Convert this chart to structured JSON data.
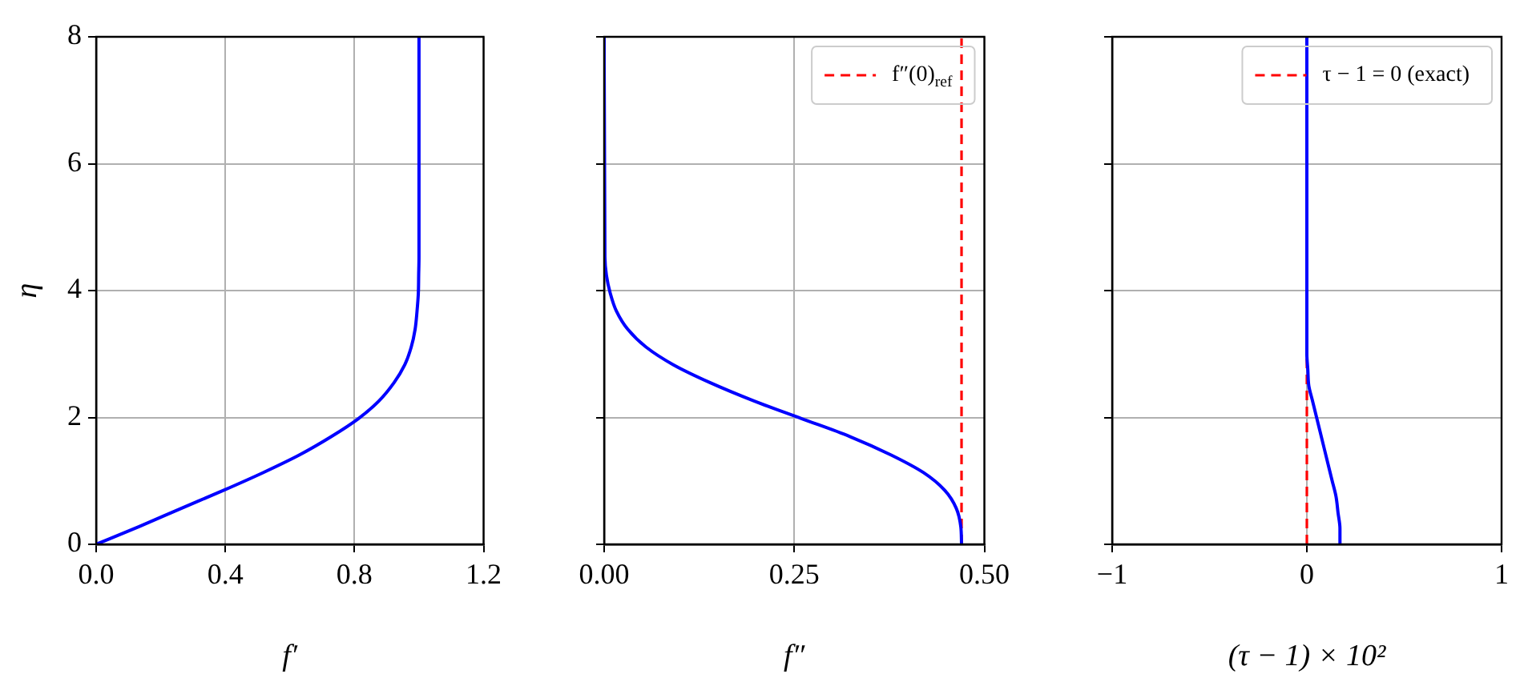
{
  "chart_data": [
    {
      "type": "line",
      "xlabel": "f′",
      "ylabel": "η",
      "series": [
        {
          "color": "#0000ff",
          "x": [
            0,
            0.133,
            0.265,
            0.394,
            0.517,
            0.63,
            0.729,
            0.812,
            0.876,
            0.923,
            0.956,
            0.976,
            0.988,
            0.994,
            0.998,
            0.999,
            1.0,
            1.0
          ],
          "values": [
            0,
            0.28,
            0.57,
            0.85,
            1.13,
            1.41,
            1.7,
            1.98,
            2.26,
            2.55,
            2.83,
            3.11,
            3.39,
            3.68,
            3.96,
            4.24,
            4.53,
            8
          ]
        }
      ],
      "xlim": [
        0,
        1.2
      ],
      "xticks": [
        {
          "value": 0,
          "label": "0.0"
        },
        0.4,
        0.8,
        1.2
      ],
      "ylim": [
        0,
        8
      ],
      "yticks": [
        0,
        2,
        4,
        6,
        8
      ],
      "grid": true
    },
    {
      "type": "line",
      "xlabel": "f″",
      "series": [
        {
          "color": "#0000ff",
          "x": [
            0.47,
            0.469,
            0.463,
            0.448,
            0.42,
            0.377,
            0.323,
            0.26,
            0.197,
            0.139,
            0.091,
            0.055,
            0.031,
            0.016,
            0.008,
            0.003,
            0.001,
            0
          ],
          "values": [
            0,
            0.28,
            0.57,
            0.85,
            1.13,
            1.41,
            1.7,
            1.98,
            2.26,
            2.55,
            2.83,
            3.11,
            3.39,
            3.68,
            3.96,
            4.24,
            4.53,
            8
          ]
        }
      ],
      "ref_lines": [
        {
          "axis": "x",
          "value": 0.47,
          "label": "f″(0)$_{ref}$",
          "color": "#ff0000",
          "line_style": "dashed"
        }
      ],
      "xlim": [
        0,
        0.5
      ],
      "xticks": [
        {
          "value": 0,
          "label": "0.00"
        },
        0.25,
        {
          "value": 0.5,
          "label": "0.50"
        }
      ],
      "ylim": [
        0,
        8
      ],
      "yticks": [
        0,
        2,
        4,
        6,
        8
      ],
      "grid": true,
      "legend": "top right",
      "tick_labels": "x"
    },
    {
      "type": "line",
      "xlabel": "(τ − 1) × 10²",
      "series": [
        {
          "color": "#0000ff",
          "x": [
            0.17,
            0.17,
            0.16,
            0.15,
            0.13,
            0.11,
            0.09,
            0.07,
            0.05,
            0.03,
            0.01,
            0.005,
            0,
            0
          ],
          "values": [
            0,
            0.25,
            0.5,
            0.75,
            1,
            1.25,
            1.5,
            1.75,
            2,
            2.25,
            2.5,
            2.75,
            3,
            8
          ]
        }
      ],
      "ref_lines": [
        {
          "axis": "x",
          "value": 0,
          "label": "τ − 1 = 0 (exact)",
          "color": "#ff0000",
          "line_style": "dashed"
        }
      ],
      "xlim": [
        -1,
        1
      ],
      "xticks": [
        {
          "value": -1,
          "label": "−1"
        },
        0,
        1
      ],
      "ylim": [
        0,
        8
      ],
      "yticks": [
        0,
        2,
        4,
        6,
        8
      ],
      "grid": true,
      "legend": "top right",
      "tick_labels": "x"
    }
  ]
}
